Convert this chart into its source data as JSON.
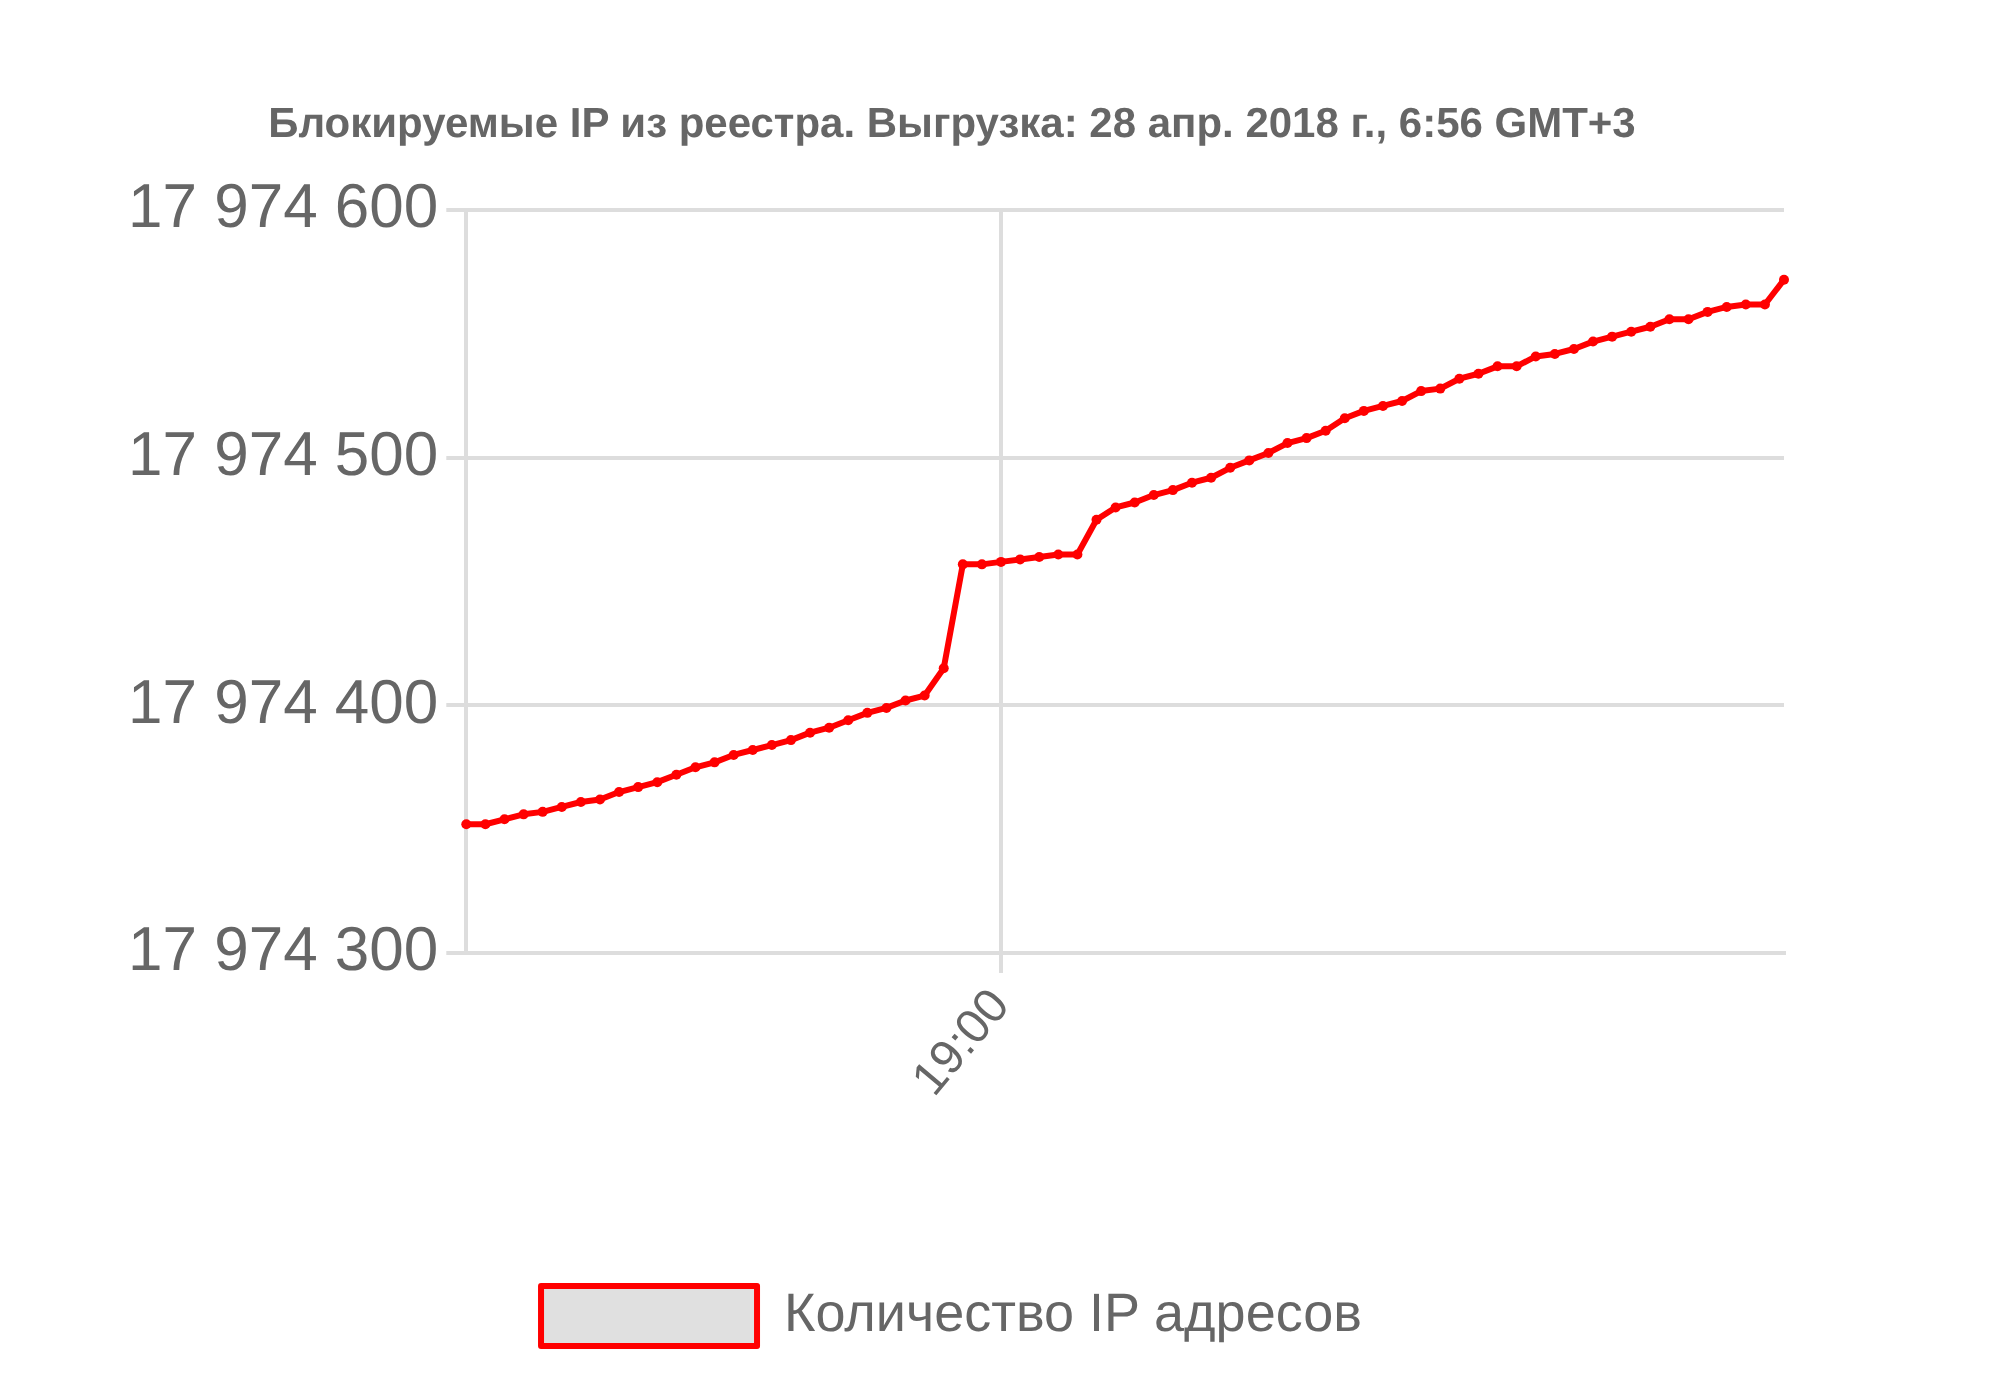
{
  "chart_data": {
    "type": "line",
    "title": "Блокируемые IP из реестра. Выгрузка: 28 апр. 2018 г., 6:56 GMT+3",
    "categories": [
      null,
      null,
      null,
      null,
      null,
      null,
      null,
      null,
      null,
      null,
      null,
      null,
      null,
      null,
      null,
      null,
      null,
      null,
      null,
      null,
      null,
      null,
      null,
      null,
      null,
      null,
      null,
      null,
      "19:00",
      null,
      null,
      null,
      null,
      null,
      null,
      null,
      null,
      null,
      null,
      null,
      null,
      null,
      null,
      null,
      null,
      null,
      null,
      null,
      null,
      null,
      null,
      null,
      null,
      null,
      null,
      null,
      null,
      null,
      null,
      null,
      null,
      null,
      null,
      null,
      null,
      null,
      null,
      null,
      null,
      null
    ],
    "ylim": [
      17974300,
      17974600
    ],
    "yticks": [
      {
        "value": 17974300,
        "label": "17 974 300"
      },
      {
        "value": 17974400,
        "label": "17 974 400"
      },
      {
        "value": 17974500,
        "label": "17 974 500"
      },
      {
        "value": 17974600,
        "label": "17 974 600"
      }
    ],
    "grid": true,
    "legend": "bottom",
    "marker": "circle",
    "line_style": "solid",
    "series": [
      {
        "name": "Количество IP адресов",
        "color": "#ff0000",
        "values": [
          17974352,
          17974352,
          17974354,
          17974356,
          17974357,
          17974359,
          17974361,
          17974362,
          17974365,
          17974367,
          17974369,
          17974372,
          17974375,
          17974377,
          17974380,
          17974382,
          17974384,
          17974386,
          17974389,
          17974391,
          17974394,
          17974397,
          17974399,
          17974402,
          17974404,
          17974415,
          17974457,
          17974457,
          17974458,
          17974459,
          17974460,
          17974461,
          17974461,
          17974475,
          17974480,
          17974482,
          17974485,
          17974487,
          17974490,
          17974492,
          17974496,
          17974499,
          17974502,
          17974506,
          17974508,
          17974511,
          17974516,
          17974519,
          17974521,
          17974523,
          17974527,
          17974528,
          17974532,
          17974534,
          17974537,
          17974537,
          17974541,
          17974542,
          17974544,
          17974547,
          17974549,
          17974551,
          17974553,
          17974556,
          17974556,
          17974559,
          17974561,
          17974562,
          17974562,
          17974572
        ]
      }
    ]
  }
}
